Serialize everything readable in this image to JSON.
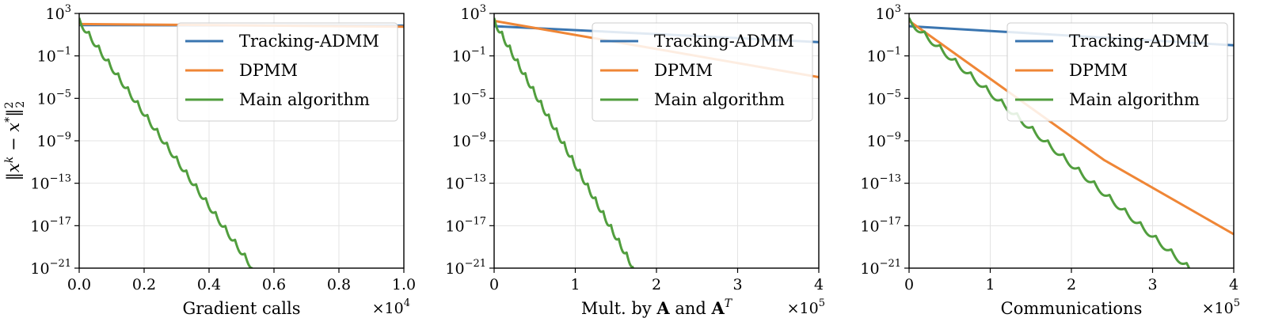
{
  "chart_data": [
    {
      "type": "line",
      "xlabel": "Gradient calls",
      "x_multiplier": "×10",
      "x_multiplier_exp": "4",
      "ylabel": "‖x^k − x*‖₂²",
      "xlim": [
        0,
        10000
      ],
      "ylim_exp": [
        -21,
        3
      ],
      "yscale": "log",
      "grid": true,
      "legend_position": "top-right",
      "x_ticks": [
        {
          "value": 0,
          "label": "0.0"
        },
        {
          "value": 2000,
          "label": "0.2"
        },
        {
          "value": 4000,
          "label": "0.4"
        },
        {
          "value": 6000,
          "label": "0.6"
        },
        {
          "value": 8000,
          "label": "0.8"
        },
        {
          "value": 10000,
          "label": "1.0"
        }
      ],
      "y_ticks": [
        {
          "exp": 3,
          "label": "10",
          "sup": "3"
        },
        {
          "exp": -1,
          "label": "10",
          "sup": "−1"
        },
        {
          "exp": -5,
          "label": "10",
          "sup": "−5"
        },
        {
          "exp": -9,
          "label": "10",
          "sup": "−9"
        },
        {
          "exp": -13,
          "label": "10",
          "sup": "−13"
        },
        {
          "exp": -17,
          "label": "10",
          "sup": "−17"
        },
        {
          "exp": -21,
          "label": "10",
          "sup": "−21"
        }
      ],
      "series": [
        {
          "name": "Tracking-ADMM",
          "color": "#3a75b0",
          "x": [
            0,
            10000
          ],
          "log10_y": [
            1.9,
            1.85
          ]
        },
        {
          "name": "DPMM",
          "color": "#ef8636",
          "x": [
            0,
            10000
          ],
          "log10_y": [
            2.0,
            1.75
          ]
        },
        {
          "name": "Main algorithm",
          "color": "#519e3e",
          "x": [
            0,
            5350
          ],
          "log10_y": [
            2.3,
            -21.0
          ],
          "oscillation_period": 300,
          "oscillation_amplitude": 0.55
        }
      ]
    },
    {
      "type": "line",
      "xlabel": "Mult. by A and A^T",
      "x_multiplier": "×10",
      "x_multiplier_exp": "5",
      "xlim": [
        0,
        400000
      ],
      "ylim_exp": [
        -21,
        3
      ],
      "yscale": "log",
      "grid": true,
      "legend_position": "top-right",
      "x_ticks": [
        {
          "value": 0,
          "label": "0"
        },
        {
          "value": 100000,
          "label": "1"
        },
        {
          "value": 200000,
          "label": "2"
        },
        {
          "value": 300000,
          "label": "3"
        },
        {
          "value": 400000,
          "label": "4"
        }
      ],
      "y_ticks": [
        {
          "exp": 3,
          "label": "10",
          "sup": "3"
        },
        {
          "exp": -1,
          "label": "10",
          "sup": "−1"
        },
        {
          "exp": -5,
          "label": "10",
          "sup": "−5"
        },
        {
          "exp": -9,
          "label": "10",
          "sup": "−9"
        },
        {
          "exp": -13,
          "label": "10",
          "sup": "−13"
        },
        {
          "exp": -17,
          "label": "10",
          "sup": "−17"
        },
        {
          "exp": -21,
          "label": "10",
          "sup": "−21"
        }
      ],
      "series": [
        {
          "name": "Tracking-ADMM",
          "color": "#3a75b0",
          "x": [
            0,
            400000
          ],
          "log10_y": [
            1.8,
            0.3
          ]
        },
        {
          "name": "DPMM",
          "color": "#ef8636",
          "x": [
            0,
            400000
          ],
          "log10_y": [
            2.3,
            -3.0
          ]
        },
        {
          "name": "Main algorithm",
          "color": "#519e3e",
          "x": [
            0,
            172000
          ],
          "log10_y": [
            2.3,
            -21.0
          ],
          "oscillation_period": 9600,
          "oscillation_amplitude": 0.55
        }
      ]
    },
    {
      "type": "line",
      "xlabel": "Communications",
      "x_multiplier": "×10",
      "x_multiplier_exp": "5",
      "xlim": [
        0,
        400000
      ],
      "ylim_exp": [
        -21,
        3
      ],
      "yscale": "log",
      "grid": true,
      "legend_position": "top-right",
      "x_ticks": [
        {
          "value": 0,
          "label": "0"
        },
        {
          "value": 100000,
          "label": "1"
        },
        {
          "value": 200000,
          "label": "2"
        },
        {
          "value": 300000,
          "label": "3"
        },
        {
          "value": 400000,
          "label": "4"
        }
      ],
      "y_ticks": [
        {
          "exp": 3,
          "label": "10",
          "sup": "3"
        },
        {
          "exp": -1,
          "label": "10",
          "sup": "−1"
        },
        {
          "exp": -5,
          "label": "10",
          "sup": "−5"
        },
        {
          "exp": -9,
          "label": "10",
          "sup": "−9"
        },
        {
          "exp": -13,
          "label": "10",
          "sup": "−13"
        },
        {
          "exp": -17,
          "label": "10",
          "sup": "−17"
        },
        {
          "exp": -21,
          "label": "10",
          "sup": "−21"
        }
      ],
      "series": [
        {
          "name": "Tracking-ADMM",
          "color": "#3a75b0",
          "x": [
            0,
            400000
          ],
          "log10_y": [
            1.8,
            0.0
          ]
        },
        {
          "name": "DPMM",
          "color": "#ef8636",
          "x": [
            0,
            240000,
            400000
          ],
          "log10_y": [
            2.3,
            -10.8,
            -17.8
          ]
        },
        {
          "name": "Main algorithm",
          "color": "#519e3e",
          "x": [
            0,
            345000
          ],
          "log10_y": [
            2.3,
            -21.0
          ],
          "oscillation_period": 19000,
          "oscillation_amplitude": 0.55
        }
      ]
    }
  ]
}
